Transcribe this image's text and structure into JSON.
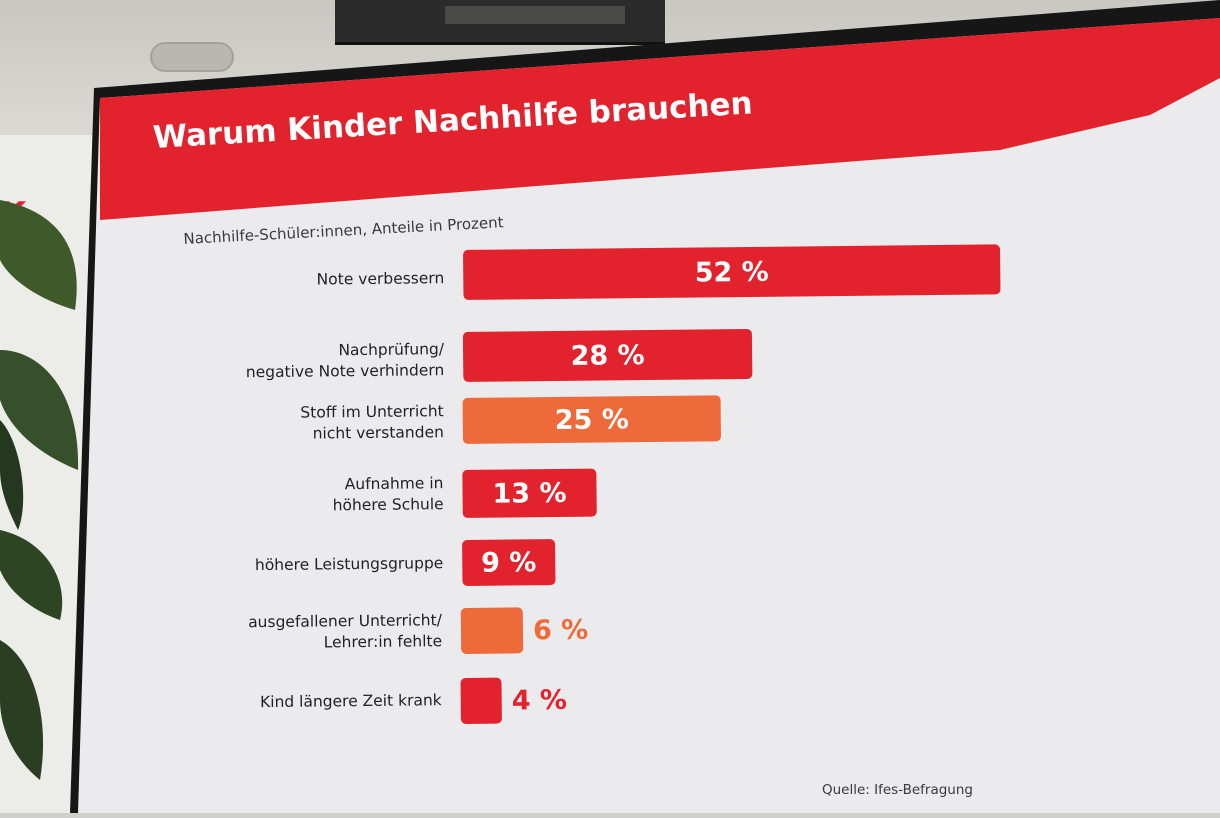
{
  "slide": {
    "title": "Warum Kinder Nachhilfe brauchen",
    "subtitle": "Nachhilfe-Schüler:innen, Anteile in Prozent",
    "source": "Quelle: Ifes-Befragung",
    "colors": {
      "red": "#e2232e",
      "orange": "#ef6a3a"
    }
  },
  "chart_data": {
    "type": "bar",
    "orientation": "horizontal",
    "title": "Warum Kinder Nachhilfe brauchen",
    "subtitle": "Nachhilfe-Schüler:innen, Anteile in Prozent",
    "categories": [
      "Note verbessern",
      "Nachprüfung/\nnegative Note verhindern",
      "Stoff im Unterricht\nnicht verstanden",
      "Aufnahme in\nhöhere Schule",
      "höhere Leistungsgruppe",
      "ausgefallener Unterricht/\nLehrer:in fehlte",
      "Kind längere Zeit krank"
    ],
    "values": [
      52,
      28,
      25,
      13,
      9,
      6,
      4
    ],
    "value_labels": [
      "52 %",
      "28 %",
      "25 %",
      "13 %",
      "9 %",
      "6 %",
      "4 %"
    ],
    "bar_colors": [
      "#e2232e",
      "#e2232e",
      "#ef6a3a",
      "#e2232e",
      "#e2232e",
      "#ef6a3a",
      "#e2232e"
    ],
    "unit": "%",
    "grid": false,
    "legend": "none"
  }
}
